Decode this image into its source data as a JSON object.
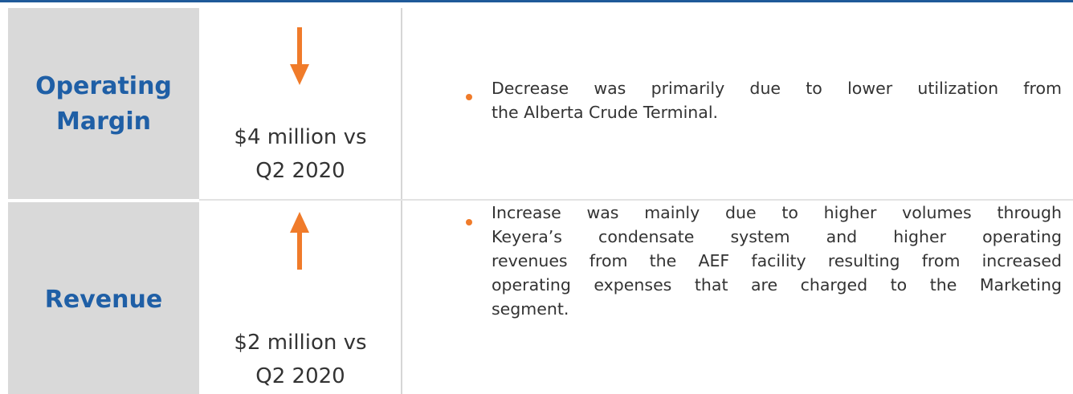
{
  "rows": [
    {
      "label": [
        "Operating",
        "Margin"
      ],
      "change": [
        "$4 million vs",
        "Q2 2020"
      ],
      "bullet": [
        "Decrease was primarily due to lower utilization from",
        "the Alberta Crude Terminal."
      ]
    },
    {
      "label": [
        "Revenue"
      ],
      "change": [
        "$2 million vs",
        "Q2 2020"
      ],
      "bullet": [
        "Increase was mainly due to higher volumes through",
        "Keyera’s condensate system and higher operating",
        "revenues from the AEF facility resulting from increased",
        "operating expenses that are charged to the Marketing",
        "segment."
      ]
    }
  ]
}
